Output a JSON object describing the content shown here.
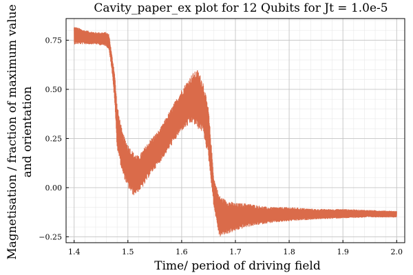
{
  "chart_data": {
    "type": "line",
    "title": "Cavity_paper_ex plot for 12 Qubits for Jt = 1.0e-5",
    "xlabel": "Time/ period of driving field",
    "ylabel_line1": "Magnetisation / fraction of maximum value",
    "ylabel_line2": "and orientation",
    "xlim": [
      1.385,
      2.015
    ],
    "ylim": [
      -0.28,
      0.86
    ],
    "x_ticks": [
      1.4,
      1.5,
      1.6,
      1.7,
      1.8,
      1.9,
      2.0
    ],
    "x_tick_labels": [
      "1.4",
      "1.5",
      "1.6",
      "1.7",
      "1.8",
      "1.9",
      "2.0"
    ],
    "y_ticks": [
      -0.25,
      0.0,
      0.25,
      0.5,
      0.75
    ],
    "y_tick_labels": [
      "−0.25",
      "0.00",
      "0.25",
      "0.50",
      "0.75"
    ],
    "grid": true,
    "minor_grid": true,
    "legend": "none",
    "series": [
      {
        "color": "#da6b4a",
        "envelope": [
          {
            "x": 1.4,
            "lo": 0.73,
            "hi": 0.82
          },
          {
            "x": 1.42,
            "lo": 0.73,
            "hi": 0.8
          },
          {
            "x": 1.44,
            "lo": 0.73,
            "hi": 0.79
          },
          {
            "x": 1.46,
            "lo": 0.72,
            "hi": 0.79
          },
          {
            "x": 1.465,
            "lo": 0.7,
            "hi": 0.78
          },
          {
            "x": 1.47,
            "lo": 0.6,
            "hi": 0.68
          },
          {
            "x": 1.475,
            "lo": 0.45,
            "hi": 0.6
          },
          {
            "x": 1.48,
            "lo": 0.2,
            "hi": 0.42
          },
          {
            "x": 1.49,
            "lo": 0.07,
            "hi": 0.28
          },
          {
            "x": 1.5,
            "lo": 0.0,
            "hi": 0.22
          },
          {
            "x": 1.51,
            "lo": -0.04,
            "hi": 0.18
          },
          {
            "x": 1.52,
            "lo": -0.02,
            "hi": 0.16
          },
          {
            "x": 1.53,
            "lo": 0.01,
            "hi": 0.2
          },
          {
            "x": 1.54,
            "lo": 0.06,
            "hi": 0.24
          },
          {
            "x": 1.56,
            "lo": 0.13,
            "hi": 0.3
          },
          {
            "x": 1.58,
            "lo": 0.21,
            "hi": 0.4
          },
          {
            "x": 1.6,
            "lo": 0.29,
            "hi": 0.5
          },
          {
            "x": 1.62,
            "lo": 0.33,
            "hi": 0.58
          },
          {
            "x": 1.63,
            "lo": 0.3,
            "hi": 0.6
          },
          {
            "x": 1.64,
            "lo": 0.28,
            "hi": 0.54
          },
          {
            "x": 1.65,
            "lo": 0.15,
            "hi": 0.4
          },
          {
            "x": 1.66,
            "lo": -0.1,
            "hi": 0.05
          },
          {
            "x": 1.67,
            "lo": -0.25,
            "hi": -0.04
          },
          {
            "x": 1.68,
            "lo": -0.24,
            "hi": -0.06
          },
          {
            "x": 1.7,
            "lo": -0.22,
            "hi": -0.08
          },
          {
            "x": 1.72,
            "lo": -0.2,
            "hi": -0.08
          },
          {
            "x": 1.76,
            "lo": -0.18,
            "hi": -0.1
          },
          {
            "x": 1.8,
            "lo": -0.17,
            "hi": -0.1
          },
          {
            "x": 1.85,
            "lo": -0.16,
            "hi": -0.11
          },
          {
            "x": 1.9,
            "lo": -0.155,
            "hi": -0.11
          },
          {
            "x": 1.95,
            "lo": -0.15,
            "hi": -0.115
          },
          {
            "x": 2.0,
            "lo": -0.15,
            "hi": -0.12
          }
        ]
      }
    ]
  }
}
